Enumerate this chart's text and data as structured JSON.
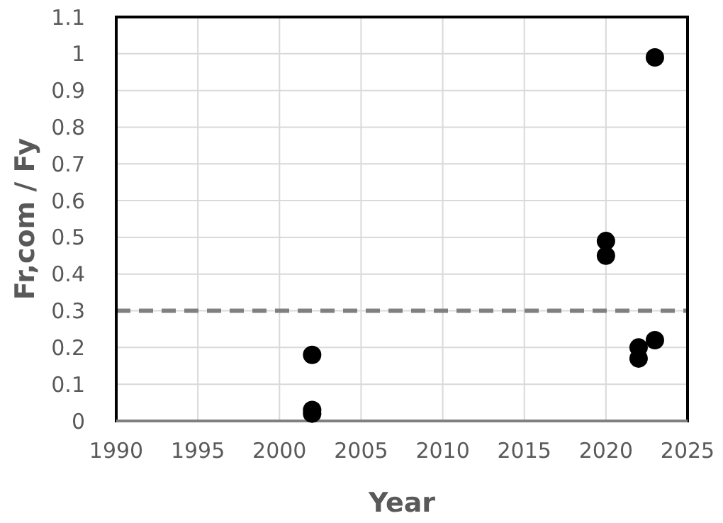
{
  "chart_data": {
    "type": "scatter",
    "xlabel": "Year",
    "ylabel": "Fr,com / Fy",
    "x": [
      2002,
      2002,
      2002,
      2020,
      2020,
      2022,
      2022,
      2023,
      2023
    ],
    "series": [
      {
        "color": "#000000",
        "values": [
          0.18,
          0.03,
          0.02,
          0.49,
          0.45,
          0.2,
          0.17,
          0.22,
          0.99
        ]
      }
    ],
    "xlim": [
      1990,
      2025
    ],
    "xticks": [
      1990,
      1995,
      2000,
      2005,
      2010,
      2015,
      2020,
      2025
    ],
    "ylim": [
      0,
      1.1
    ],
    "yticks": [
      0,
      0.1,
      0.2,
      0.3,
      0.4,
      0.5,
      0.6,
      0.7,
      0.8,
      0.9,
      1,
      1.1
    ],
    "ref_lines": [
      {
        "axis": "y",
        "value": 0.3,
        "color": "#808080",
        "line_style": "dashed"
      }
    ],
    "grid": true,
    "marker": "circle"
  }
}
